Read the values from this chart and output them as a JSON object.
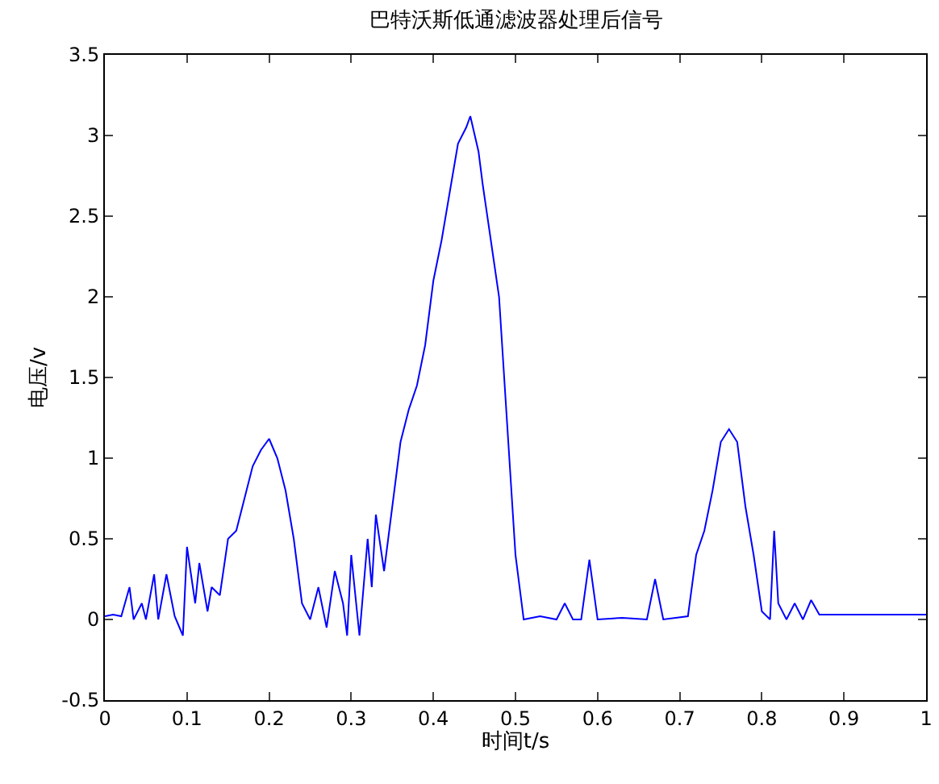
{
  "chart_data": {
    "type": "line",
    "title": "巴特沃斯低通滤波器处理后信号",
    "xlabel": "时间t/s",
    "ylabel": "电压/v",
    "xlim": [
      0,
      1
    ],
    "xticks": [
      0,
      0.1,
      0.2,
      0.3,
      0.4,
      0.5,
      0.6,
      0.7,
      0.8,
      0.9,
      1
    ],
    "ylim": [
      -0.5,
      3.5
    ],
    "yticks": [
      -0.5,
      0,
      0.5,
      1,
      1.5,
      2,
      2.5,
      3,
      3.5
    ],
    "grid": false,
    "legend": false,
    "marker": "none",
    "line_style": "solid",
    "series": [
      {
        "color": "#0000ff",
        "x": [
          0,
          0.01,
          0.02,
          0.03,
          0.035,
          0.045,
          0.05,
          0.06,
          0.065,
          0.075,
          0.085,
          0.095,
          0.1,
          0.11,
          0.115,
          0.125,
          0.13,
          0.14,
          0.15,
          0.16,
          0.17,
          0.18,
          0.19,
          0.2,
          0.21,
          0.22,
          0.23,
          0.24,
          0.25,
          0.26,
          0.27,
          0.28,
          0.29,
          0.295,
          0.3,
          0.31,
          0.32,
          0.325,
          0.33,
          0.34,
          0.35,
          0.36,
          0.37,
          0.38,
          0.39,
          0.4,
          0.41,
          0.42,
          0.43,
          0.44,
          0.445,
          0.455,
          0.46,
          0.47,
          0.48,
          0.49,
          0.5,
          0.51,
          0.53,
          0.55,
          0.56,
          0.57,
          0.58,
          0.59,
          0.6,
          0.63,
          0.66,
          0.67,
          0.68,
          0.71,
          0.72,
          0.73,
          0.74,
          0.75,
          0.76,
          0.77,
          0.78,
          0.79,
          0.8,
          0.81,
          0.815,
          0.82,
          0.83,
          0.84,
          0.85,
          0.86,
          0.87,
          0.9,
          1.0
        ],
        "values": [
          0.02,
          0.03,
          0.02,
          0.2,
          0.0,
          0.1,
          0.0,
          0.28,
          0.0,
          0.28,
          0.02,
          -0.1,
          0.45,
          0.1,
          0.35,
          0.05,
          0.2,
          0.15,
          0.5,
          0.55,
          0.75,
          0.95,
          1.05,
          1.12,
          1.0,
          0.8,
          0.5,
          0.1,
          0.0,
          0.2,
          -0.05,
          0.3,
          0.1,
          -0.1,
          0.4,
          -0.1,
          0.5,
          0.2,
          0.65,
          0.3,
          0.7,
          1.1,
          1.3,
          1.45,
          1.7,
          2.1,
          2.35,
          2.65,
          2.95,
          3.05,
          3.12,
          2.9,
          2.7,
          2.35,
          2.0,
          1.2,
          0.4,
          0.0,
          0.02,
          0.0,
          0.1,
          0.0,
          0.0,
          0.37,
          0.0,
          0.01,
          0.0,
          0.25,
          0.0,
          0.02,
          0.4,
          0.55,
          0.8,
          1.1,
          1.18,
          1.1,
          0.7,
          0.4,
          0.05,
          0.0,
          0.55,
          0.1,
          0.0,
          0.1,
          0.0,
          0.12,
          0.03,
          0.03,
          0.03
        ]
      }
    ]
  }
}
